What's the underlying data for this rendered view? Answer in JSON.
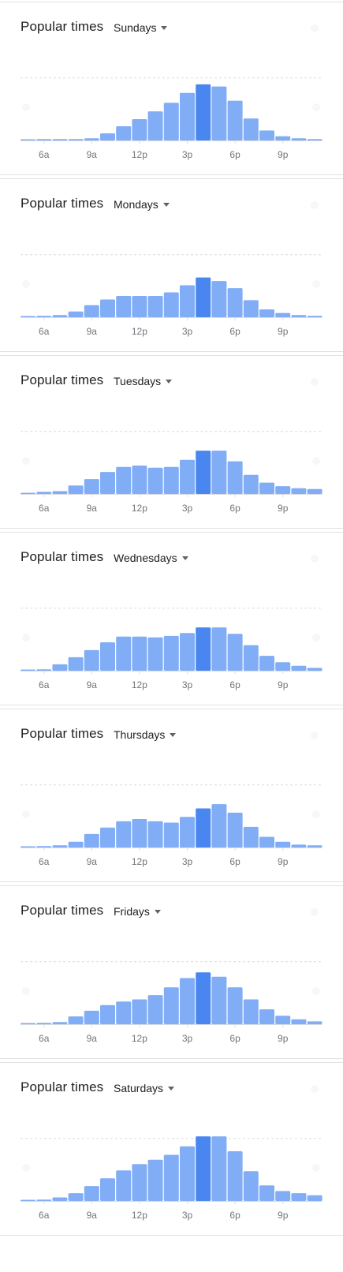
{
  "panel_title": "Popular times",
  "colors": {
    "bar": "#80adf5",
    "bar_current": "#4a86f0",
    "grid": "#dadce0",
    "baseline": "#dadce0",
    "tick_text": "#70757a"
  },
  "panels": [
    {
      "day": "Sundays"
    },
    {
      "day": "Mondays"
    },
    {
      "day": "Tuesdays"
    },
    {
      "day": "Wednesdays"
    },
    {
      "day": "Thursdays"
    },
    {
      "day": "Fridays"
    },
    {
      "day": "Saturdays"
    }
  ],
  "chart_data": [
    {
      "type": "bar",
      "title": "Popular times",
      "day": "Sundays",
      "categories": [
        "5a",
        "6a",
        "7a",
        "8a",
        "9a",
        "10a",
        "11a",
        "12p",
        "1p",
        "2p",
        "3p",
        "4p",
        "5p",
        "6p",
        "7p",
        "8p",
        "9p",
        "10p",
        "11p"
      ],
      "tick_labels": [
        "6a",
        "9a",
        "12p",
        "3p",
        "6p",
        "9p"
      ],
      "values": [
        1,
        2,
        2,
        2,
        3,
        10,
        20,
        30,
        41,
        53,
        67,
        79,
        76,
        56,
        31,
        14,
        6,
        3,
        2
      ],
      "highlight_index": 11,
      "ylim": [
        0,
        100
      ],
      "grid_value": 88
    },
    {
      "type": "bar",
      "title": "Popular times",
      "day": "Mondays",
      "categories": [
        "5a",
        "6a",
        "7a",
        "8a",
        "9a",
        "10a",
        "11a",
        "12p",
        "1p",
        "2p",
        "3p",
        "4p",
        "5p",
        "6p",
        "7p",
        "8p",
        "9p",
        "10p",
        "11p"
      ],
      "tick_labels": [
        "6a",
        "9a",
        "12p",
        "3p",
        "6p",
        "9p"
      ],
      "values": [
        1,
        2,
        3,
        8,
        17,
        25,
        30,
        30,
        30,
        35,
        45,
        56,
        51,
        41,
        24,
        11,
        6,
        3,
        2
      ],
      "highlight_index": 11,
      "ylim": [
        0,
        100
      ],
      "grid_value": 88
    },
    {
      "type": "bar",
      "title": "Popular times",
      "day": "Tuesdays",
      "categories": [
        "5a",
        "6a",
        "7a",
        "8a",
        "9a",
        "10a",
        "11a",
        "12p",
        "1p",
        "2p",
        "3p",
        "4p",
        "5p",
        "6p",
        "7p",
        "8p",
        "9p",
        "10p",
        "11p"
      ],
      "tick_labels": [
        "6a",
        "9a",
        "12p",
        "3p",
        "6p",
        "9p"
      ],
      "values": [
        1,
        3,
        4,
        12,
        21,
        31,
        38,
        40,
        37,
        38,
        48,
        61,
        61,
        46,
        27,
        16,
        11,
        8,
        7
      ],
      "highlight_index": 11,
      "ylim": [
        0,
        100
      ],
      "grid_value": 88
    },
    {
      "type": "bar",
      "title": "Popular times",
      "day": "Wednesdays",
      "categories": [
        "5a",
        "6a",
        "7a",
        "8a",
        "9a",
        "10a",
        "11a",
        "12p",
        "1p",
        "2p",
        "3p",
        "4p",
        "5p",
        "6p",
        "7p",
        "8p",
        "9p",
        "10p",
        "11p"
      ],
      "tick_labels": [
        "6a",
        "9a",
        "12p",
        "3p",
        "6p",
        "9p"
      ],
      "values": [
        1,
        2,
        9,
        19,
        29,
        40,
        48,
        48,
        47,
        49,
        53,
        61,
        61,
        52,
        36,
        21,
        12,
        7,
        4
      ],
      "highlight_index": 11,
      "ylim": [
        0,
        100
      ],
      "grid_value": 88
    },
    {
      "type": "bar",
      "title": "Popular times",
      "day": "Thursdays",
      "categories": [
        "5a",
        "6a",
        "7a",
        "8a",
        "9a",
        "10a",
        "11a",
        "12p",
        "1p",
        "2p",
        "3p",
        "4p",
        "5p",
        "6p",
        "7p",
        "8p",
        "9p",
        "10p",
        "11p"
      ],
      "tick_labels": [
        "6a",
        "9a",
        "12p",
        "3p",
        "6p",
        "9p"
      ],
      "values": [
        1,
        2,
        3,
        8,
        19,
        28,
        37,
        40,
        37,
        35,
        43,
        55,
        61,
        49,
        29,
        15,
        8,
        4,
        3
      ],
      "highlight_index": 11,
      "ylim": [
        0,
        100
      ],
      "grid_value": 88
    },
    {
      "type": "bar",
      "title": "Popular times",
      "day": "Fridays",
      "categories": [
        "5a",
        "6a",
        "7a",
        "8a",
        "9a",
        "10a",
        "11a",
        "12p",
        "1p",
        "2p",
        "3p",
        "4p",
        "5p",
        "6p",
        "7p",
        "8p",
        "9p",
        "10p",
        "11p"
      ],
      "tick_labels": [
        "6a",
        "9a",
        "12p",
        "3p",
        "6p",
        "9p"
      ],
      "values": [
        1,
        2,
        3,
        11,
        19,
        27,
        32,
        35,
        41,
        52,
        65,
        73,
        67,
        52,
        35,
        21,
        12,
        7,
        4
      ],
      "highlight_index": 11,
      "ylim": [
        0,
        100
      ],
      "grid_value": 88
    },
    {
      "type": "bar",
      "title": "Popular times",
      "day": "Saturdays",
      "categories": [
        "5a",
        "6a",
        "7a",
        "8a",
        "9a",
        "10a",
        "11a",
        "12p",
        "1p",
        "2p",
        "3p",
        "4p",
        "5p",
        "6p",
        "7p",
        "8p",
        "9p",
        "10p",
        "11p"
      ],
      "tick_labels": [
        "6a",
        "9a",
        "12p",
        "3p",
        "6p",
        "9p"
      ],
      "values": [
        1,
        2,
        5,
        11,
        21,
        32,
        43,
        52,
        58,
        65,
        77,
        91,
        91,
        70,
        42,
        22,
        14,
        11,
        8
      ],
      "highlight_index": 11,
      "ylim": [
        0,
        100
      ],
      "grid_value": 88
    }
  ]
}
